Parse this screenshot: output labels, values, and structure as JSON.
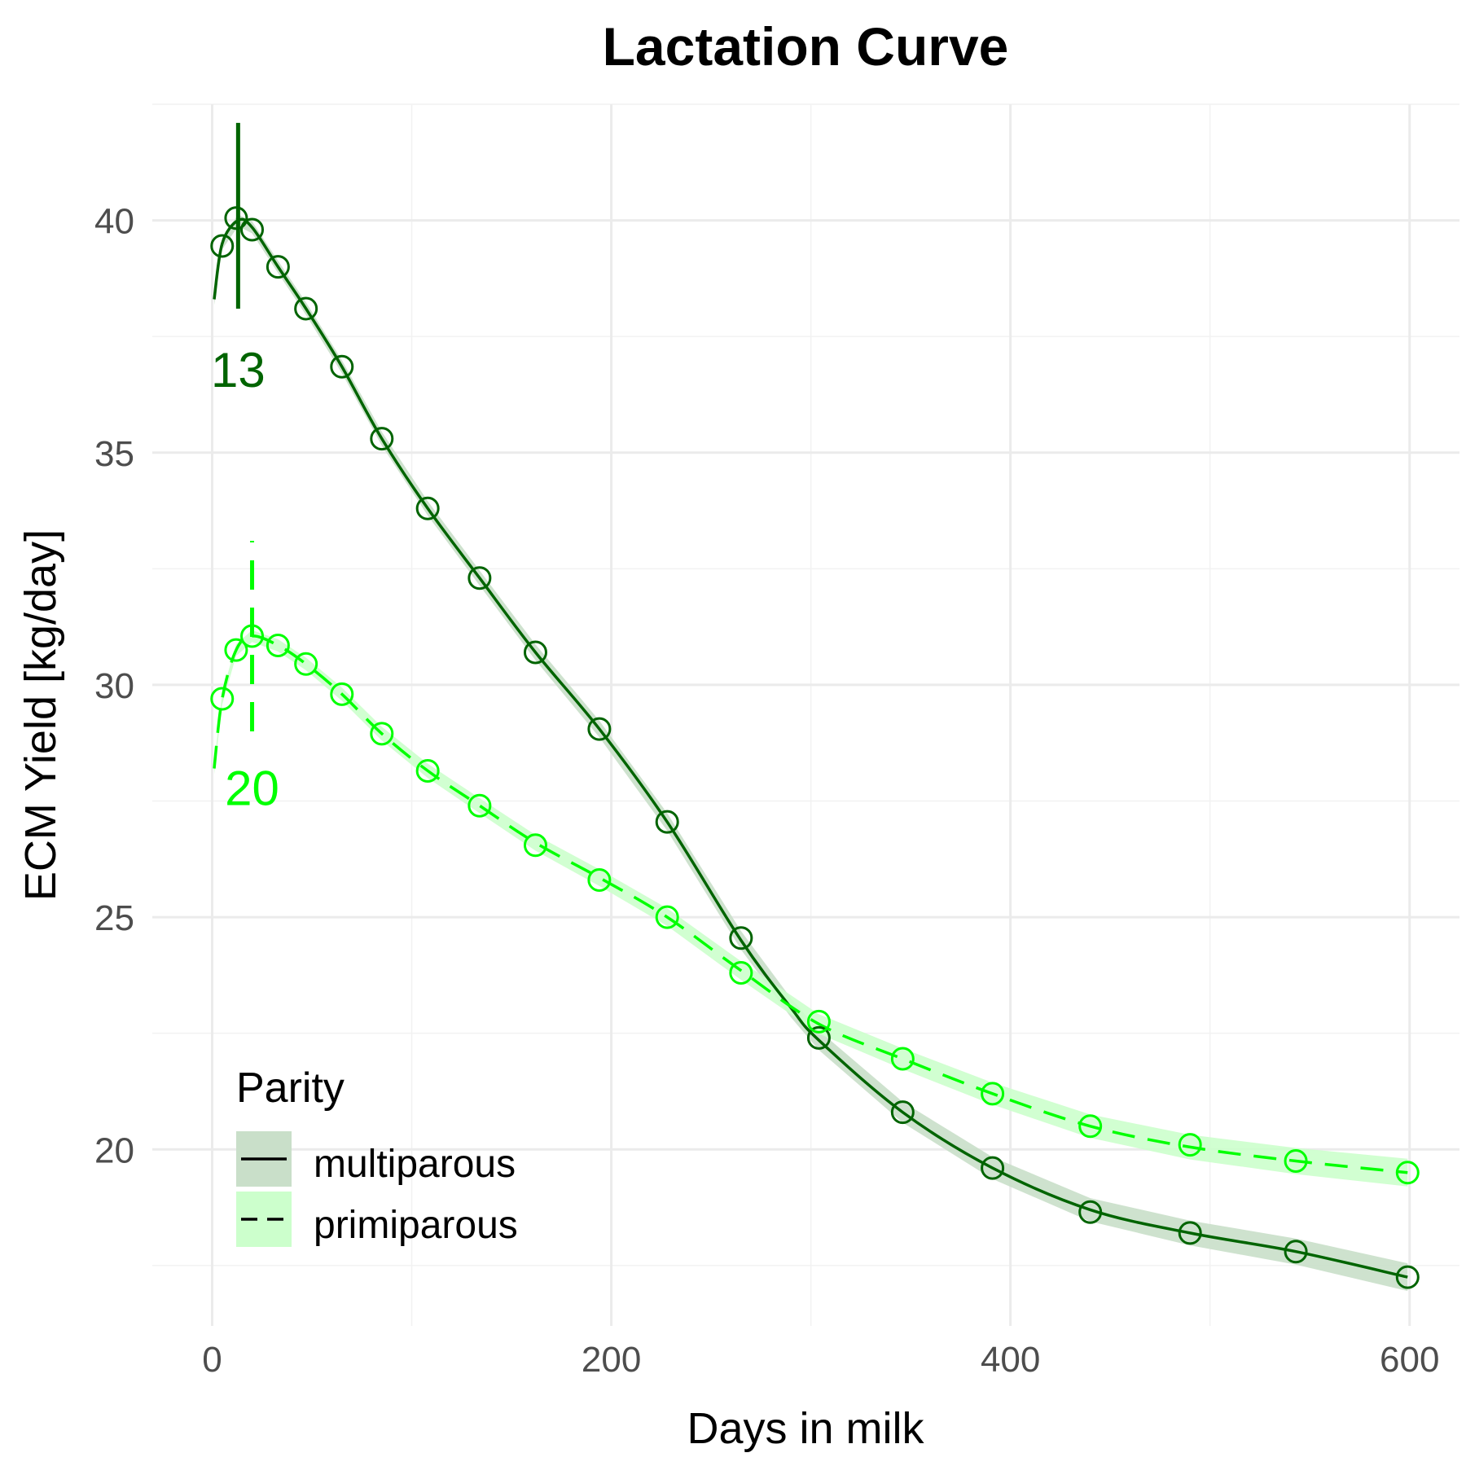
{
  "chart_data": {
    "type": "line",
    "title": "Lactation Curve",
    "xlabel": "Days in milk",
    "ylabel": "ECM Yield [kg/day]",
    "xlim": [
      -30,
      625
    ],
    "ylim": [
      16.2,
      42.5
    ],
    "x_ticks": [
      0,
      200,
      400,
      600
    ],
    "x_tick_labels": [
      "0",
      "200",
      "400",
      "600"
    ],
    "y_ticks": [
      20,
      25,
      30,
      35,
      40
    ],
    "y_tick_labels": [
      "20",
      "25",
      "30",
      "35",
      "40"
    ],
    "grid": true,
    "legend": {
      "title": "Parity",
      "position": "bottom-left",
      "entries": [
        "multiparous",
        "primiparous"
      ]
    },
    "series": [
      {
        "name": "multiparous",
        "color": "#006400",
        "ribbon_color": "#c9dfc9",
        "line_style": "solid",
        "curve": [
          {
            "x": 1,
            "y": 38.3
          },
          {
            "x": 5,
            "y": 39.5
          },
          {
            "x": 13,
            "y": 40.0
          },
          {
            "x": 20,
            "y": 39.85
          },
          {
            "x": 33,
            "y": 39.0
          },
          {
            "x": 47,
            "y": 38.1
          },
          {
            "x": 65,
            "y": 36.85
          },
          {
            "x": 85,
            "y": 35.3
          },
          {
            "x": 108,
            "y": 33.8
          },
          {
            "x": 134,
            "y": 32.3
          },
          {
            "x": 162,
            "y": 30.7
          },
          {
            "x": 194,
            "y": 29.05
          },
          {
            "x": 228,
            "y": 27.05
          },
          {
            "x": 265,
            "y": 24.5
          },
          {
            "x": 290,
            "y": 23.05
          },
          {
            "x": 304,
            "y": 22.35
          },
          {
            "x": 346,
            "y": 20.8
          },
          {
            "x": 391,
            "y": 19.6
          },
          {
            "x": 440,
            "y": 18.7
          },
          {
            "x": 490,
            "y": 18.2
          },
          {
            "x": 543,
            "y": 17.8
          },
          {
            "x": 599,
            "y": 17.25
          }
        ],
        "points": [
          {
            "x": 5,
            "y": 39.45
          },
          {
            "x": 12,
            "y": 40.05
          },
          {
            "x": 20,
            "y": 39.8
          },
          {
            "x": 33,
            "y": 39.0
          },
          {
            "x": 47,
            "y": 38.1
          },
          {
            "x": 65,
            "y": 36.85
          },
          {
            "x": 85,
            "y": 35.3
          },
          {
            "x": 108,
            "y": 33.8
          },
          {
            "x": 134,
            "y": 32.3
          },
          {
            "x": 162,
            "y": 30.7
          },
          {
            "x": 194,
            "y": 29.05
          },
          {
            "x": 228,
            "y": 27.05
          },
          {
            "x": 265,
            "y": 24.55
          },
          {
            "x": 304,
            "y": 22.4
          },
          {
            "x": 346,
            "y": 20.8
          },
          {
            "x": 391,
            "y": 19.6
          },
          {
            "x": 440,
            "y": 18.65
          },
          {
            "x": 490,
            "y": 18.2
          },
          {
            "x": 543,
            "y": 17.8
          },
          {
            "x": 599,
            "y": 17.25
          }
        ],
        "peak": {
          "x": 13,
          "y_from": 38.1,
          "y_to": 42.1,
          "label": "13",
          "label_y": 36.8
        }
      },
      {
        "name": "primiparous",
        "color": "#00ff00",
        "ribbon_color": "#ccffcc",
        "line_style": "dashed",
        "curve": [
          {
            "x": 1,
            "y": 28.2
          },
          {
            "x": 5,
            "y": 29.7
          },
          {
            "x": 12,
            "y": 30.75
          },
          {
            "x": 20,
            "y": 31.05
          },
          {
            "x": 33,
            "y": 30.85
          },
          {
            "x": 47,
            "y": 30.45
          },
          {
            "x": 65,
            "y": 29.8
          },
          {
            "x": 85,
            "y": 28.95
          },
          {
            "x": 108,
            "y": 28.15
          },
          {
            "x": 134,
            "y": 27.4
          },
          {
            "x": 162,
            "y": 26.6
          },
          {
            "x": 194,
            "y": 25.85
          },
          {
            "x": 228,
            "y": 25.0
          },
          {
            "x": 265,
            "y": 23.85
          },
          {
            "x": 304,
            "y": 22.7
          },
          {
            "x": 346,
            "y": 21.95
          },
          {
            "x": 391,
            "y": 21.2
          },
          {
            "x": 440,
            "y": 20.5
          },
          {
            "x": 490,
            "y": 20.05
          },
          {
            "x": 543,
            "y": 19.75
          },
          {
            "x": 599,
            "y": 19.5
          }
        ],
        "points": [
          {
            "x": 5,
            "y": 29.7
          },
          {
            "x": 12,
            "y": 30.75
          },
          {
            "x": 20,
            "y": 31.05
          },
          {
            "x": 33,
            "y": 30.85
          },
          {
            "x": 47,
            "y": 30.45
          },
          {
            "x": 65,
            "y": 29.8
          },
          {
            "x": 85,
            "y": 28.95
          },
          {
            "x": 108,
            "y": 28.15
          },
          {
            "x": 134,
            "y": 27.4
          },
          {
            "x": 162,
            "y": 26.55
          },
          {
            "x": 194,
            "y": 25.8
          },
          {
            "x": 228,
            "y": 25.0
          },
          {
            "x": 265,
            "y": 23.8
          },
          {
            "x": 304,
            "y": 22.75
          },
          {
            "x": 346,
            "y": 21.95
          },
          {
            "x": 391,
            "y": 21.2
          },
          {
            "x": 440,
            "y": 20.5
          },
          {
            "x": 490,
            "y": 20.1
          },
          {
            "x": 543,
            "y": 19.75
          },
          {
            "x": 599,
            "y": 19.5
          }
        ],
        "peak": {
          "x": 20,
          "y_from": 29.0,
          "y_to": 33.1,
          "label": "20",
          "label_y": 27.8
        }
      }
    ]
  }
}
